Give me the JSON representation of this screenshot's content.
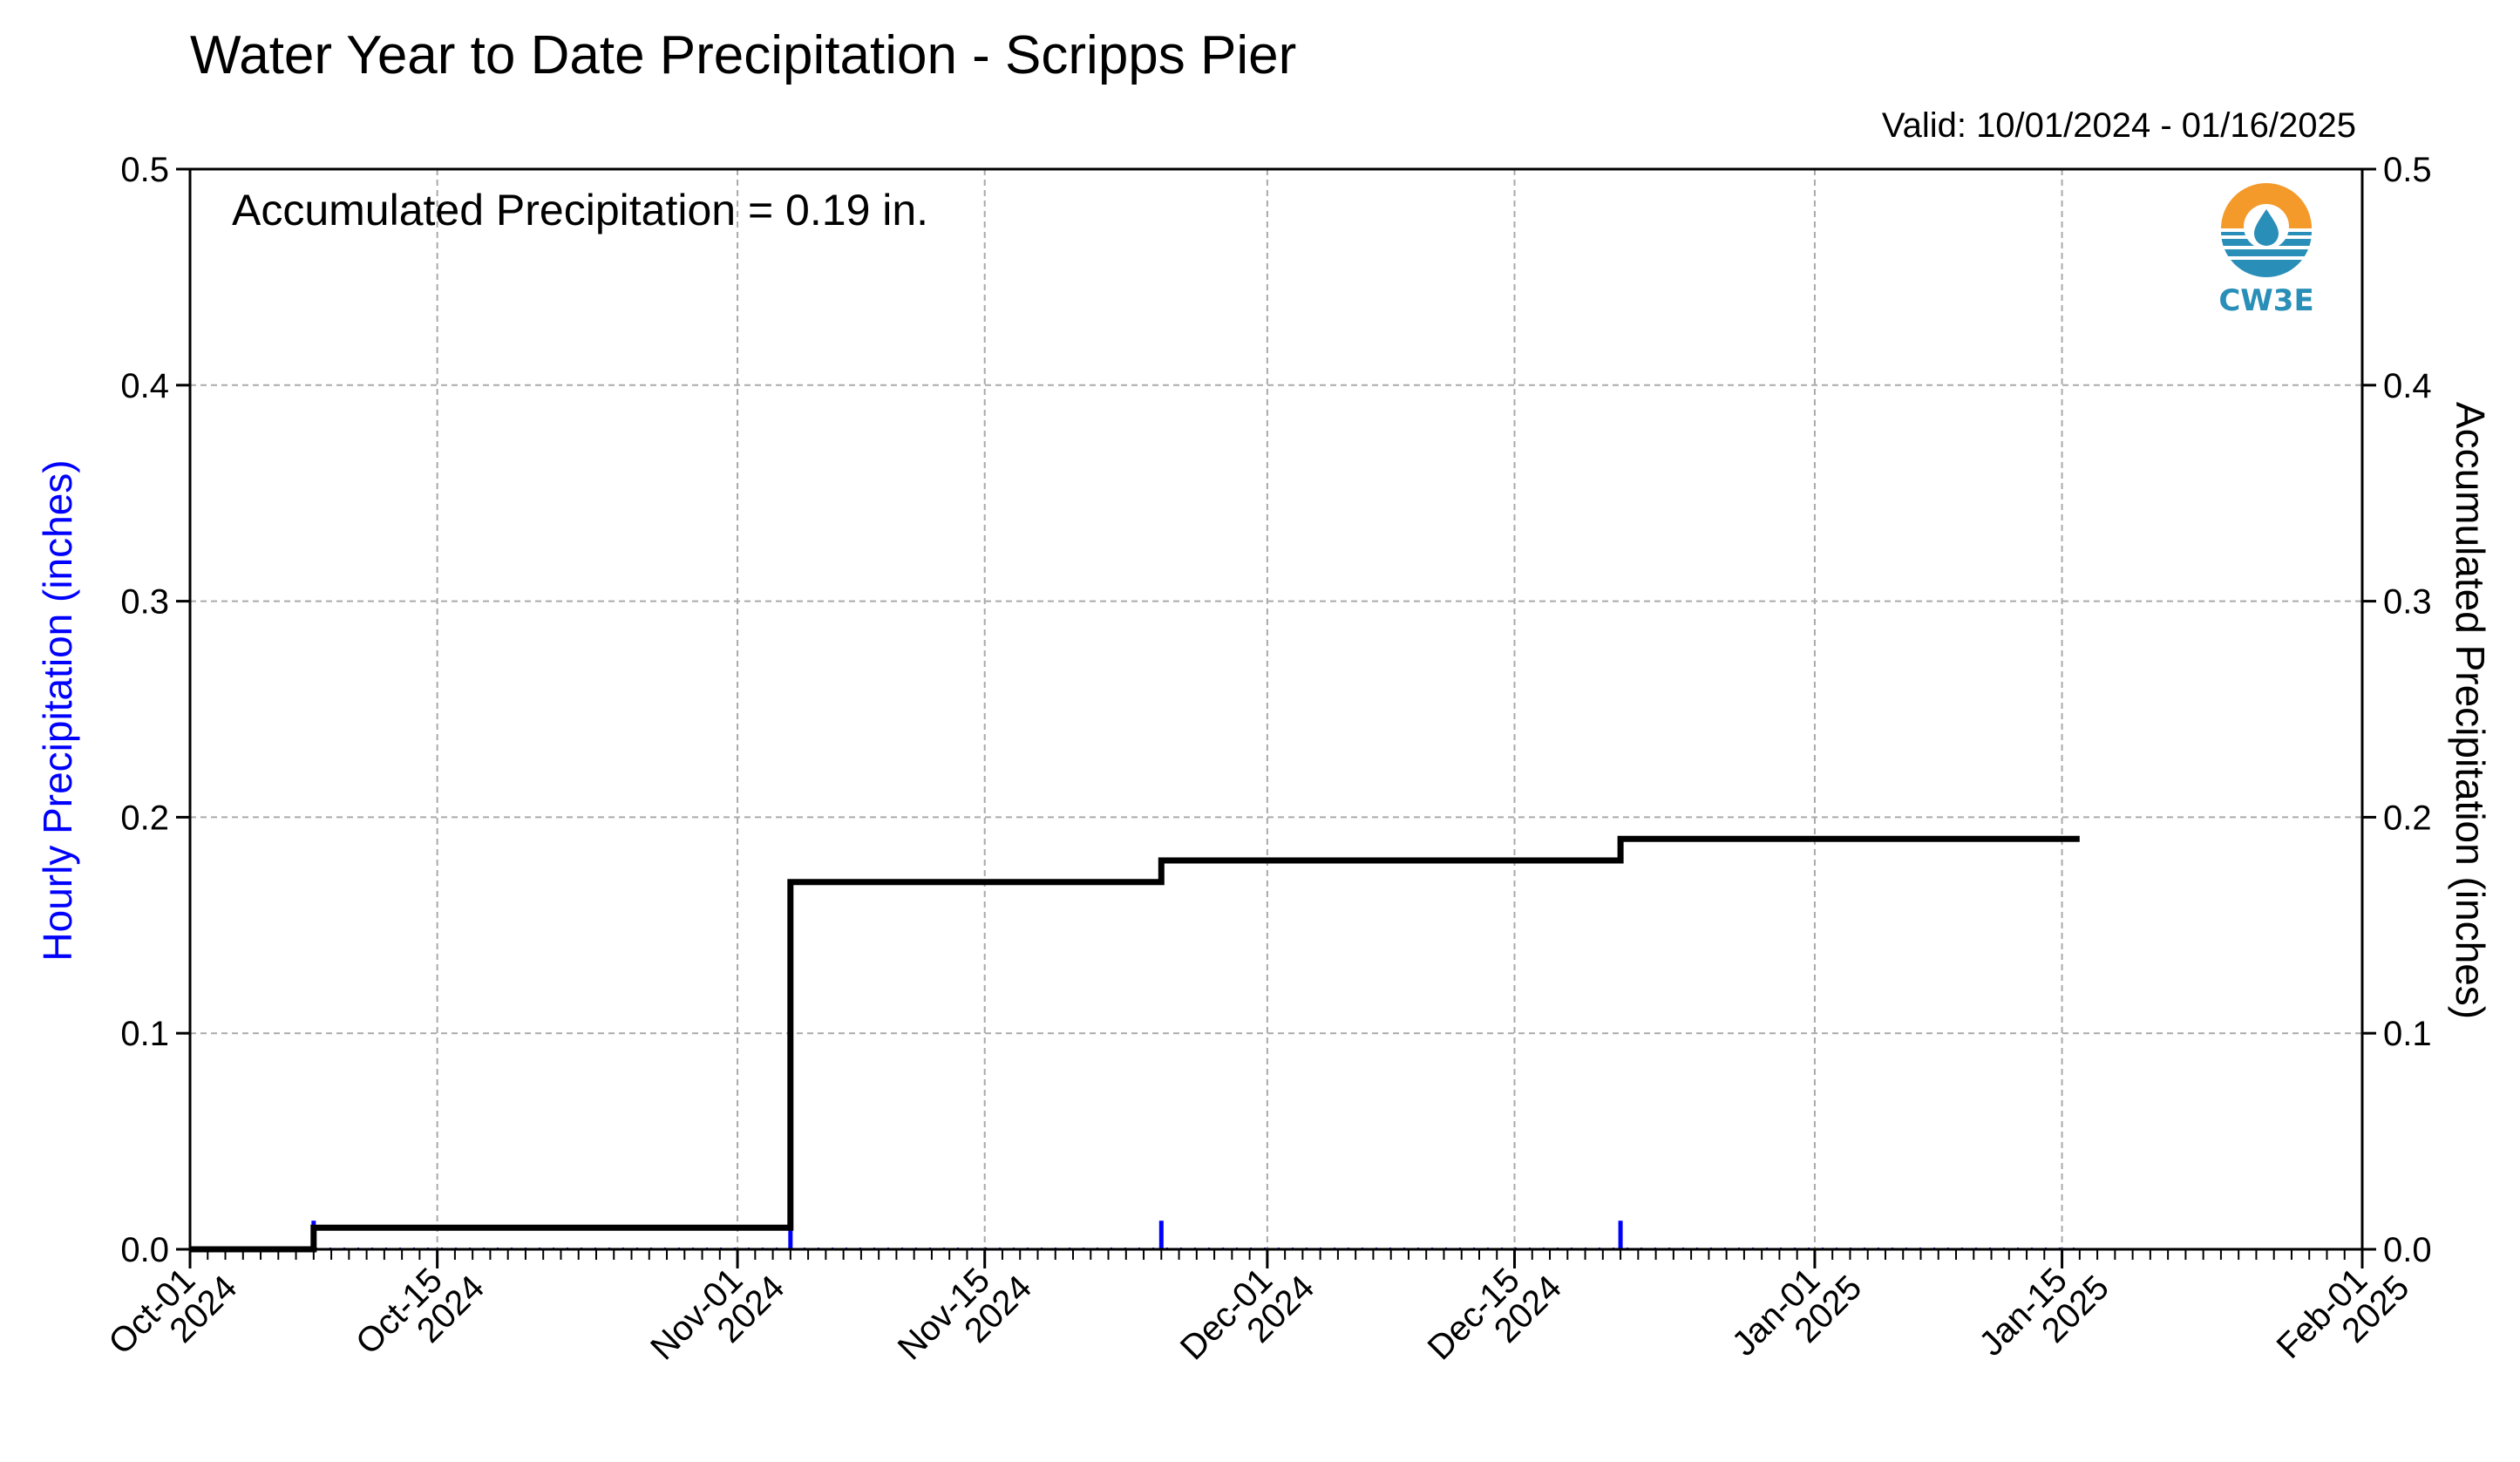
{
  "chart_data": {
    "type": "line",
    "title": "Water Year to Date Precipitation - Scripps Pier",
    "subtitle": "Valid: 10/01/2024 - 01/16/2025",
    "annotation": "Accumulated Precipitation = 0.19 in.",
    "ylabel_left": "Hourly Precipitation (inches)",
    "ylabel_right": "Accumulated Precipitation (inches)",
    "ylim": [
      0,
      0.5
    ],
    "xlim": [
      "2024-10-01",
      "2025-02-01"
    ],
    "y_ticks": [
      "0.0",
      "0.1",
      "0.2",
      "0.3",
      "0.4",
      "0.5"
    ],
    "y_tick_values": [
      0,
      0.1,
      0.2,
      0.3,
      0.4,
      0.5
    ],
    "x_ticks": [
      {
        "date": "2024-10-01",
        "line1": "Oct-01",
        "line2": "2024"
      },
      {
        "date": "2024-10-15",
        "line1": "Oct-15",
        "line2": "2024"
      },
      {
        "date": "2024-11-01",
        "line1": "Nov-01",
        "line2": "2024"
      },
      {
        "date": "2024-11-15",
        "line1": "Nov-15",
        "line2": "2024"
      },
      {
        "date": "2024-12-01",
        "line1": "Dec-01",
        "line2": "2024"
      },
      {
        "date": "2024-12-15",
        "line1": "Dec-15",
        "line2": "2024"
      },
      {
        "date": "2025-01-01",
        "line1": "Jan-01",
        "line2": "2025"
      },
      {
        "date": "2025-01-15",
        "line1": "Jan-15",
        "line2": "2025"
      },
      {
        "date": "2025-02-01",
        "line1": "Feb-01",
        "line2": "2025"
      }
    ],
    "grid": true,
    "series": [
      {
        "name": "Accumulated Precipitation",
        "color": "#000000",
        "step": true,
        "points": [
          {
            "x": "2024-10-01",
            "y": 0.0
          },
          {
            "x": "2024-10-08",
            "y": 0.0
          },
          {
            "x": "2024-10-08",
            "y": 0.01
          },
          {
            "x": "2024-11-04",
            "y": 0.01
          },
          {
            "x": "2024-11-04",
            "y": 0.17
          },
          {
            "x": "2024-11-25",
            "y": 0.17
          },
          {
            "x": "2024-11-25",
            "y": 0.18
          },
          {
            "x": "2024-12-21",
            "y": 0.18
          },
          {
            "x": "2024-12-21",
            "y": 0.19
          },
          {
            "x": "2025-01-16",
            "y": 0.19
          }
        ]
      },
      {
        "name": "Hourly Precipitation",
        "color": "#0000ff",
        "type": "bar",
        "points": [
          {
            "x": "2024-10-08",
            "y": 0.01
          },
          {
            "x": "2024-11-04",
            "y": 0.01
          },
          {
            "x": "2024-11-25",
            "y": 0.01
          },
          {
            "x": "2024-12-21",
            "y": 0.01
          }
        ]
      }
    ]
  },
  "logo": {
    "text": "CW3E",
    "colors": {
      "sun": "#f39a2b",
      "water": "#2a8fb8"
    }
  }
}
